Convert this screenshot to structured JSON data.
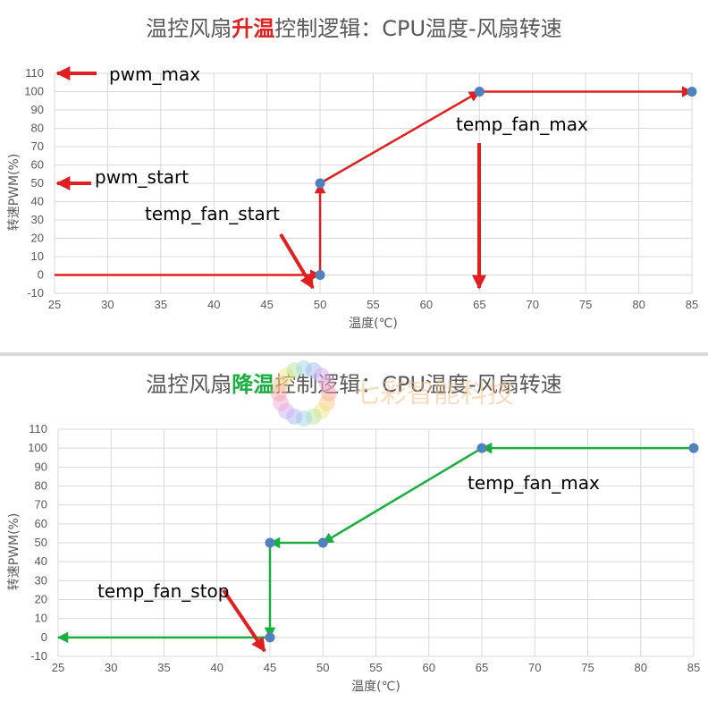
{
  "chart_data": [
    {
      "type": "line",
      "title_parts": [
        {
          "text": "温控风扇",
          "color": "#595959"
        },
        {
          "text": "升温",
          "color": "#e02020"
        },
        {
          "text": "控制逻辑：CPU温度-风扇转速",
          "color": "#595959"
        }
      ],
      "xlabel": "温度(℃)",
      "ylabel": "转速PWM(%)",
      "xlim": [
        25,
        85
      ],
      "ylim": [
        -10,
        110
      ],
      "xticks": [
        25,
        30,
        35,
        40,
        45,
        50,
        55,
        60,
        65,
        70,
        75,
        80,
        85
      ],
      "yticks": [
        -10,
        0,
        10,
        20,
        30,
        40,
        50,
        60,
        70,
        80,
        90,
        100,
        110
      ],
      "grid": true,
      "series_color": "#e02020",
      "points": [
        {
          "x": 50,
          "y": 0
        },
        {
          "x": 50,
          "y": 50
        },
        {
          "x": 65,
          "y": 100
        },
        {
          "x": 85,
          "y": 100
        }
      ],
      "annotations": [
        {
          "text": "pwm_max"
        },
        {
          "text": "pwm_start"
        },
        {
          "text": "temp_fan_start"
        },
        {
          "text": "temp_fan_max"
        }
      ]
    },
    {
      "type": "line",
      "title_parts": [
        {
          "text": "温控风扇",
          "color": "#595959"
        },
        {
          "text": "降温",
          "color": "#1aae3f"
        },
        {
          "text": "控制逻辑：CPU温度-风扇转速",
          "color": "#595959"
        }
      ],
      "xlabel": "温度(℃)",
      "ylabel": "转速PWM(%)",
      "xlim": [
        25,
        85
      ],
      "ylim": [
        -10,
        110
      ],
      "xticks": [
        25,
        30,
        35,
        40,
        45,
        50,
        55,
        60,
        65,
        70,
        75,
        80,
        85
      ],
      "yticks": [
        -10,
        0,
        10,
        20,
        30,
        40,
        50,
        60,
        70,
        80,
        90,
        100,
        110
      ],
      "grid": true,
      "series_color": "#1aae3f",
      "points": [
        {
          "x": 85,
          "y": 100
        },
        {
          "x": 65,
          "y": 100
        },
        {
          "x": 50,
          "y": 50
        },
        {
          "x": 45,
          "y": 50
        },
        {
          "x": 45,
          "y": 0
        },
        {
          "x": 25,
          "y": 0
        }
      ],
      "annotations": [
        {
          "text": "temp_fan_max"
        },
        {
          "text": "temp_fan_stop"
        }
      ],
      "watermark": "七彩智能科技"
    }
  ]
}
